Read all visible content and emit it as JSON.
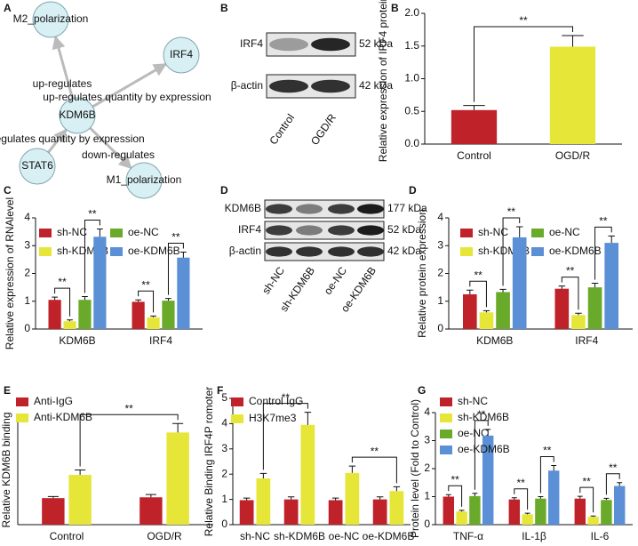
{
  "diagram": {
    "label": "A",
    "nodes": [
      "M2_polarization",
      "IRF4",
      "KDM6B",
      "STAT6",
      "M1_polarization"
    ],
    "edges": [
      {
        "from": 2,
        "to": 0,
        "label": "up-regulates"
      },
      {
        "from": 2,
        "to": 1,
        "label": "up-regulates quantity by expression"
      },
      {
        "from": 3,
        "to": 2,
        "label": "up-regulates quantity by expression"
      },
      {
        "from": 2,
        "to": 4,
        "label": "down-regulates"
      }
    ]
  },
  "blots": [
    {
      "label": "B",
      "rows": [
        {
          "name": "IRF4",
          "size": "52 kDa"
        },
        {
          "name": "β-actin",
          "size": "42 kDa"
        }
      ],
      "lanes": [
        "Control",
        "OGD/R"
      ]
    },
    {
      "label": "D",
      "rows": [
        {
          "name": "KDM6B",
          "size": "177 kDa"
        },
        {
          "name": "IRF4",
          "size": "52 kDa"
        },
        {
          "name": "β-actin",
          "size": "42 kDa"
        }
      ],
      "lanes": [
        "sh-NC",
        "sh-KDM6B",
        "oe-NC",
        "oe-KDM6B"
      ]
    }
  ],
  "chart_data": [
    {
      "type": "bar",
      "label": "B",
      "ylabel": "Relative expression of IRF4 protein",
      "categories": [
        "Control",
        "OGD/R"
      ],
      "values": [
        0.52,
        1.49
      ],
      "errors": [
        0.07,
        0.17
      ],
      "colors": [
        "#c0222a",
        "#e6e639"
      ],
      "ylim": [
        0,
        2
      ],
      "yticks": [
        {
          "value": 0,
          "label": "0.0"
        },
        {
          "value": 0.5,
          "label": "0.5"
        },
        {
          "value": 1,
          "label": "1.0"
        },
        {
          "value": 1.5,
          "label": "1.5"
        },
        {
          "value": 2,
          "label": "2.0"
        }
      ],
      "brackets": [
        {
          "label": "**",
          "from": [
            0,
            0
          ],
          "to": [
            0,
            1
          ]
        }
      ]
    },
    {
      "type": "bar",
      "label": "C",
      "ylabel": "Relative expression of RNAlevel",
      "categories": [
        "KDM6B",
        "IRF4"
      ],
      "series": [
        {
          "name": "sh-NC",
          "color": "#c0222a",
          "values": [
            1.05,
            0.98
          ],
          "errors": [
            0.1,
            0.07
          ]
        },
        {
          "name": "sh-KDM6B",
          "color": "#e6e639",
          "values": [
            0.28,
            0.42
          ],
          "errors": [
            0.05,
            0.05
          ]
        },
        {
          "name": "oe-NC",
          "color": "#6aaa2a",
          "values": [
            1.05,
            1.02
          ],
          "errors": [
            0.12,
            0.08
          ]
        },
        {
          "name": "oe-KDM6B",
          "color": "#5b8fd6",
          "values": [
            3.32,
            2.57
          ],
          "errors": [
            0.28,
            0.2
          ]
        }
      ],
      "ylim": [
        0,
        4
      ],
      "yticks": [
        0,
        1,
        2,
        3,
        4
      ],
      "brackets": [
        {
          "label": "**",
          "from": [
            0,
            0
          ],
          "to": [
            1,
            0
          ]
        },
        {
          "label": "**",
          "from": [
            2,
            0
          ],
          "to": [
            3,
            0
          ]
        },
        {
          "label": "**",
          "from": [
            0,
            1
          ],
          "to": [
            1,
            1
          ]
        },
        {
          "label": "**",
          "from": [
            2,
            1
          ],
          "to": [
            3,
            1
          ]
        }
      ]
    },
    {
      "type": "bar",
      "label": "D",
      "ylabel": "Relative protein expression",
      "categories": [
        "KDM6B",
        "IRF4"
      ],
      "series": [
        {
          "name": "sh-NC",
          "color": "#c0222a",
          "values": [
            1.25,
            1.45
          ],
          "errors": [
            0.15,
            0.1
          ]
        },
        {
          "name": "sh-KDM6B",
          "color": "#e6e639",
          "values": [
            0.6,
            0.5
          ],
          "errors": [
            0.06,
            0.07
          ]
        },
        {
          "name": "oe-NC",
          "color": "#6aaa2a",
          "values": [
            1.33,
            1.5
          ],
          "errors": [
            0.1,
            0.15
          ]
        },
        {
          "name": "oe-KDM6B",
          "color": "#5b8fd6",
          "values": [
            3.3,
            3.1
          ],
          "errors": [
            0.38,
            0.25
          ]
        }
      ],
      "ylim": [
        0,
        4
      ],
      "yticks": [
        0,
        1,
        2,
        3,
        4
      ],
      "brackets": [
        {
          "label": "**",
          "from": [
            0,
            0
          ],
          "to": [
            1,
            0
          ]
        },
        {
          "label": "**",
          "from": [
            2,
            0
          ],
          "to": [
            3,
            0
          ]
        },
        {
          "label": "**",
          "from": [
            0,
            1
          ],
          "to": [
            1,
            1
          ]
        },
        {
          "label": "**",
          "from": [
            2,
            1
          ],
          "to": [
            3,
            1
          ]
        }
      ]
    },
    {
      "type": "bar",
      "label": "E",
      "ylabel": "Relative KDM6B binding",
      "categories": [
        "Control",
        "OGD/R"
      ],
      "series": [
        {
          "name": "Anti-IgG",
          "color": "#c0222a",
          "values": [
            0.97,
            1.0
          ],
          "errors": [
            0.06,
            0.1
          ]
        },
        {
          "name": "Anti-KDM6B",
          "color": "#e6e639",
          "values": [
            1.82,
            3.37
          ],
          "errors": [
            0.18,
            0.33
          ]
        }
      ],
      "ylim": [
        0,
        4
      ],
      "brackets": [
        {
          "label": "**",
          "from": [
            1,
            0
          ],
          "to": [
            1,
            1
          ]
        }
      ]
    },
    {
      "type": "bar",
      "label": "F",
      "ylabel": "Relative Binding IRF4P romoter",
      "categories": [
        "sh-NC",
        "sh-KDM6B",
        "oe-NC",
        "oe-KDM6B"
      ],
      "series": [
        {
          "name": "Control IgG",
          "color": "#c0222a",
          "values": [
            0.97,
            1.0,
            0.97,
            1.0
          ],
          "errors": [
            0.08,
            0.1,
            0.08,
            0.1
          ]
        },
        {
          "name": "H3K7me3",
          "color": "#e6e639",
          "values": [
            1.83,
            3.95,
            2.05,
            1.33
          ],
          "errors": [
            0.2,
            0.5,
            0.27,
            0.17
          ]
        }
      ],
      "ylim": [
        0,
        5
      ],
      "yticks": [
        0,
        1,
        2,
        3,
        4,
        5
      ],
      "brackets": [
        {
          "label": "**",
          "from": [
            1,
            0
          ],
          "to": [
            1,
            1
          ]
        },
        {
          "label": "**",
          "from": [
            1,
            2
          ],
          "to": [
            1,
            3
          ]
        }
      ]
    },
    {
      "type": "bar",
      "label": "G",
      "ylabel": "Protein level (Fold to Control)",
      "categories": [
        "TNF-α",
        "IL-1β",
        "IL-6"
      ],
      "series": [
        {
          "name": "sh-NC",
          "color": "#c0222a",
          "values": [
            1.0,
            0.9,
            0.93
          ],
          "errors": [
            0.07,
            0.06,
            0.08
          ]
        },
        {
          "name": "sh-KDM6B",
          "color": "#e6e639",
          "values": [
            0.47,
            0.37,
            0.28
          ],
          "errors": [
            0.04,
            0.04,
            0.03
          ]
        },
        {
          "name": "oe-NC",
          "color": "#6aaa2a",
          "values": [
            1.02,
            0.93,
            0.88
          ],
          "errors": [
            0.1,
            0.07,
            0.06
          ]
        },
        {
          "name": "oe-KDM6B",
          "color": "#5b8fd6",
          "values": [
            3.18,
            1.93,
            1.38
          ],
          "errors": [
            0.22,
            0.18,
            0.12
          ]
        }
      ],
      "ylim": [
        0,
        4
      ],
      "yticks": [
        0,
        1,
        2,
        3,
        4
      ],
      "brackets": [
        {
          "label": "**",
          "from": [
            0,
            0
          ],
          "to": [
            1,
            0
          ]
        },
        {
          "label": "**",
          "from": [
            2,
            0
          ],
          "to": [
            3,
            0
          ]
        },
        {
          "label": "**",
          "from": [
            0,
            1
          ],
          "to": [
            1,
            1
          ]
        },
        {
          "label": "**",
          "from": [
            2,
            1
          ],
          "to": [
            3,
            1
          ]
        },
        {
          "label": "**",
          "from": [
            0,
            2
          ],
          "to": [
            1,
            2
          ]
        },
        {
          "label": "**",
          "from": [
            2,
            2
          ],
          "to": [
            3,
            2
          ]
        }
      ]
    }
  ]
}
